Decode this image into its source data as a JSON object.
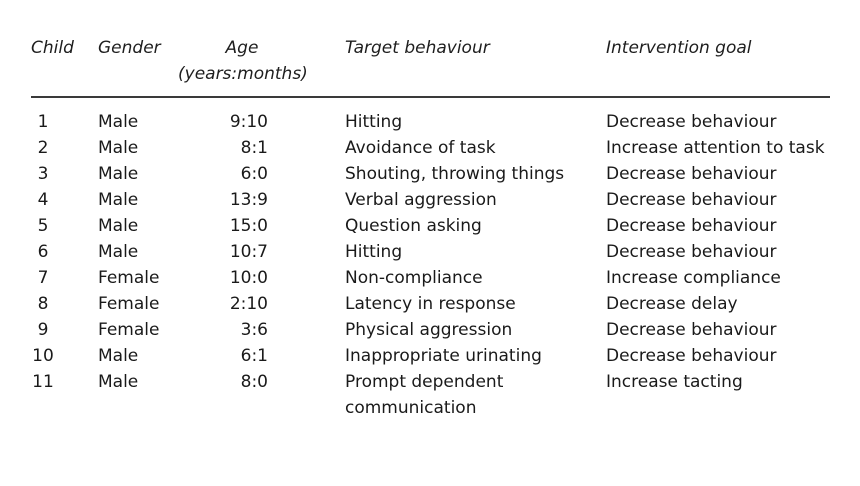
{
  "table": {
    "headers": {
      "child": "Child",
      "gender": "Gender",
      "age_line1": "Age",
      "age_line2": "(years:months)",
      "target": "Target behaviour",
      "goal": "Intervention goal"
    },
    "rows": [
      {
        "child": "1",
        "gender": "Male",
        "age": "9:10",
        "target": "Hitting",
        "goal": "Decrease behaviour"
      },
      {
        "child": "2",
        "gender": "Male",
        "age": "8:1",
        "target": "Avoidance of task",
        "goal": "Increase attention to task"
      },
      {
        "child": "3",
        "gender": "Male",
        "age": "6:0",
        "target": "Shouting, throwing things",
        "goal": "Decrease behaviour"
      },
      {
        "child": "4",
        "gender": "Male",
        "age": "13:9",
        "target": "Verbal aggression",
        "goal": "Decrease behaviour"
      },
      {
        "child": "5",
        "gender": "Male",
        "age": "15:0",
        "target": "Question asking",
        "goal": "Decrease behaviour"
      },
      {
        "child": "6",
        "gender": "Male",
        "age": "10:7",
        "target": "Hitting",
        "goal": "Decrease behaviour"
      },
      {
        "child": "7",
        "gender": "Female",
        "age": "10:0",
        "target": "Non-compliance",
        "goal": "Increase compliance"
      },
      {
        "child": "8",
        "gender": "Female",
        "age": "2:10",
        "target": "Latency in response",
        "goal": "Decrease delay"
      },
      {
        "child": "9",
        "gender": "Female",
        "age": "3:6",
        "target": "Physical aggression",
        "goal": "Decrease behaviour"
      },
      {
        "child": "10",
        "gender": "Male",
        "age": "6:1",
        "target": "Inappropriate urinating",
        "goal": "Decrease behaviour"
      },
      {
        "child": "11",
        "gender": "Male",
        "age": "8:0",
        "target": "Prompt dependent",
        "target_line2": "communication",
        "goal": "Increase tacting"
      }
    ]
  }
}
